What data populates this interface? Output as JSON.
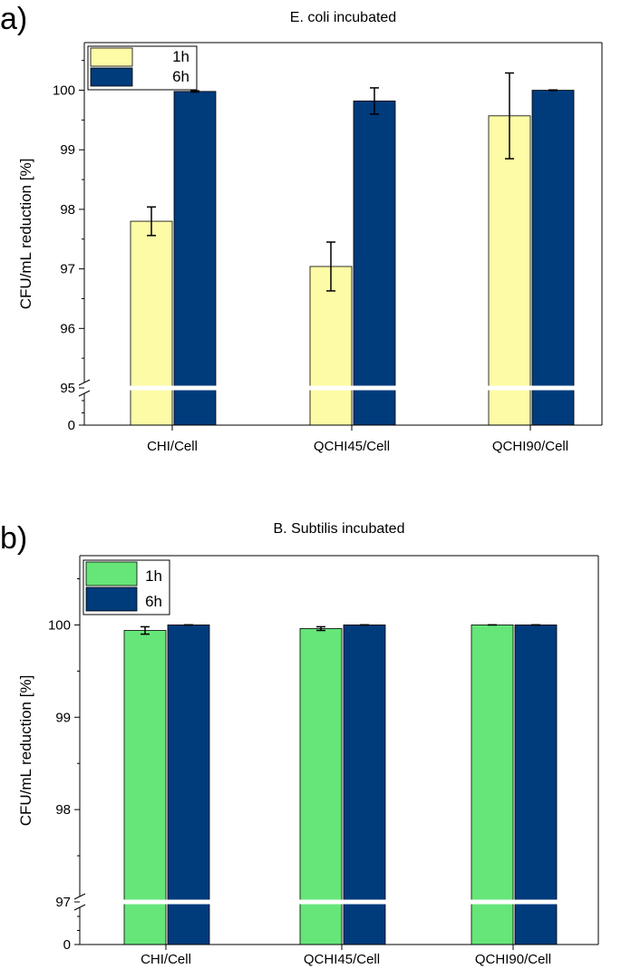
{
  "chart_data": [
    {
      "panel_label": "a)",
      "type": "bar",
      "title": "E. coli incubated",
      "ylabel": "CFU/mL reduction [%]",
      "xlabel": "",
      "categories": [
        "CHI/Cell",
        "QCHI45/Cell",
        "QCHI90/Cell"
      ],
      "series": [
        {
          "name": "1h",
          "color": "#fdfba6",
          "values": [
            97.8,
            97.04,
            99.57
          ],
          "errors": [
            0.24,
            0.41,
            0.72
          ]
        },
        {
          "name": "6h",
          "color": "#003b7c",
          "values": [
            99.98,
            99.82,
            100.0
          ],
          "errors": [
            0.01,
            0.22,
            0.005
          ]
        }
      ],
      "ylim": [
        95,
        100.8
      ],
      "yticks": [
        "95",
        "96",
        "97",
        "98",
        "99",
        "100"
      ],
      "axis_break": {
        "lower_tick": "0",
        "upper_start": 95
      },
      "legend": "top-left"
    },
    {
      "panel_label": "b)",
      "type": "bar",
      "title": "B. Subtilis incubated",
      "ylabel": "CFU/mL reduction [%]",
      "xlabel": "",
      "categories": [
        "CHI/Cell",
        "QCHI45/Cell",
        "QCHI90/Cell"
      ],
      "series": [
        {
          "name": "1h",
          "color": "#66e679",
          "values": [
            99.94,
            99.96,
            100.0
          ],
          "errors": [
            0.04,
            0.02,
            0.0
          ]
        },
        {
          "name": "6h",
          "color": "#003b7c",
          "values": [
            100.0,
            100.0,
            100.0
          ],
          "errors": [
            0.0,
            0.0,
            0.0
          ]
        }
      ],
      "ylim": [
        97,
        100.75
      ],
      "yticks": [
        "97",
        "98",
        "99",
        "100"
      ],
      "axis_break": {
        "lower_tick": "0",
        "upper_start": 97
      },
      "legend": "top-left"
    }
  ]
}
